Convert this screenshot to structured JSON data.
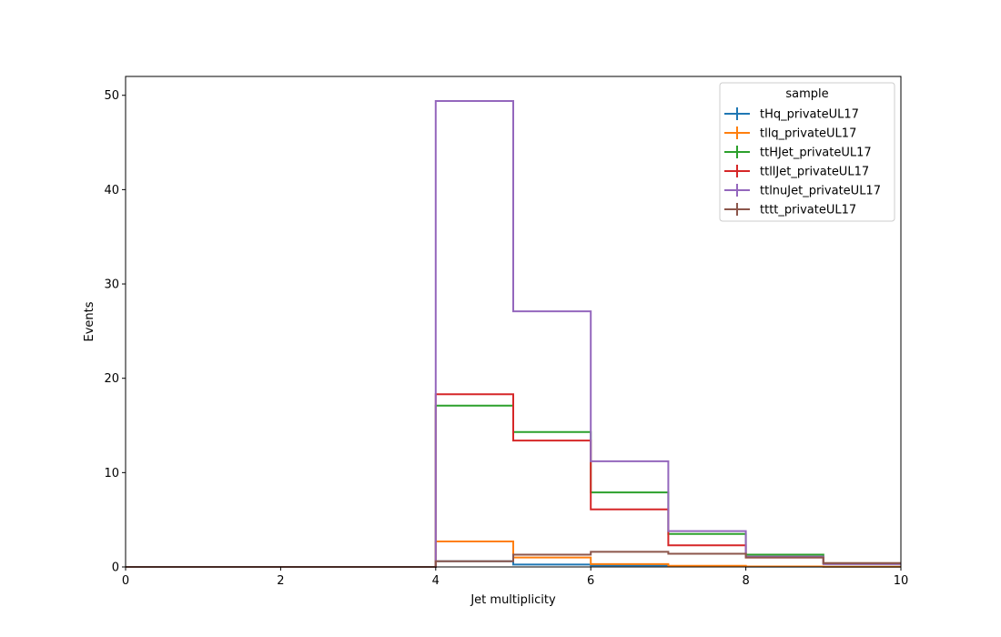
{
  "chart_data": {
    "type": "line",
    "subtype": "step-histogram",
    "title": "",
    "xlabel": "Jet multiplicity",
    "ylabel": "Events",
    "xlim": [
      0,
      10
    ],
    "ylim": [
      0,
      52
    ],
    "x_ticks": [
      0,
      2,
      4,
      6,
      8,
      10
    ],
    "y_ticks": [
      0,
      10,
      20,
      30,
      40,
      50
    ],
    "grid": false,
    "legend": {
      "title": "sample",
      "placement": "top-right"
    },
    "bin_edges": [
      0,
      1,
      2,
      3,
      4,
      5,
      6,
      7,
      8,
      9,
      10
    ],
    "series": [
      {
        "name": "tHq_privateUL17",
        "color": "#1f77b4",
        "values": [
          0,
          0,
          0,
          0,
          0.6,
          0.25,
          0.15,
          0.08,
          0.04,
          0.02
        ]
      },
      {
        "name": "tllq_privateUL17",
        "color": "#ff7f0e",
        "values": [
          0,
          0,
          0,
          0,
          2.7,
          1.0,
          0.3,
          0.12,
          0.05,
          0.02
        ]
      },
      {
        "name": "ttHJet_privateUL17",
        "color": "#2ca02c",
        "values": [
          0,
          0,
          0,
          0,
          17.1,
          14.3,
          7.9,
          3.5,
          1.3,
          0.4
        ]
      },
      {
        "name": "ttllJet_privateUL17",
        "color": "#d62728",
        "values": [
          0,
          0,
          0,
          0,
          18.3,
          13.4,
          6.1,
          2.3,
          1.0,
          0.4
        ]
      },
      {
        "name": "ttlnuJet_privateUL17",
        "color": "#9467bd",
        "values": [
          0,
          0,
          0,
          0,
          49.4,
          27.1,
          11.2,
          3.8,
          1.1,
          0.3
        ]
      },
      {
        "name": "tttt_privateUL17",
        "color": "#8c564b",
        "values": [
          0,
          0,
          0,
          0,
          0.6,
          1.3,
          1.6,
          1.4,
          1.0,
          0.4
        ]
      }
    ]
  }
}
